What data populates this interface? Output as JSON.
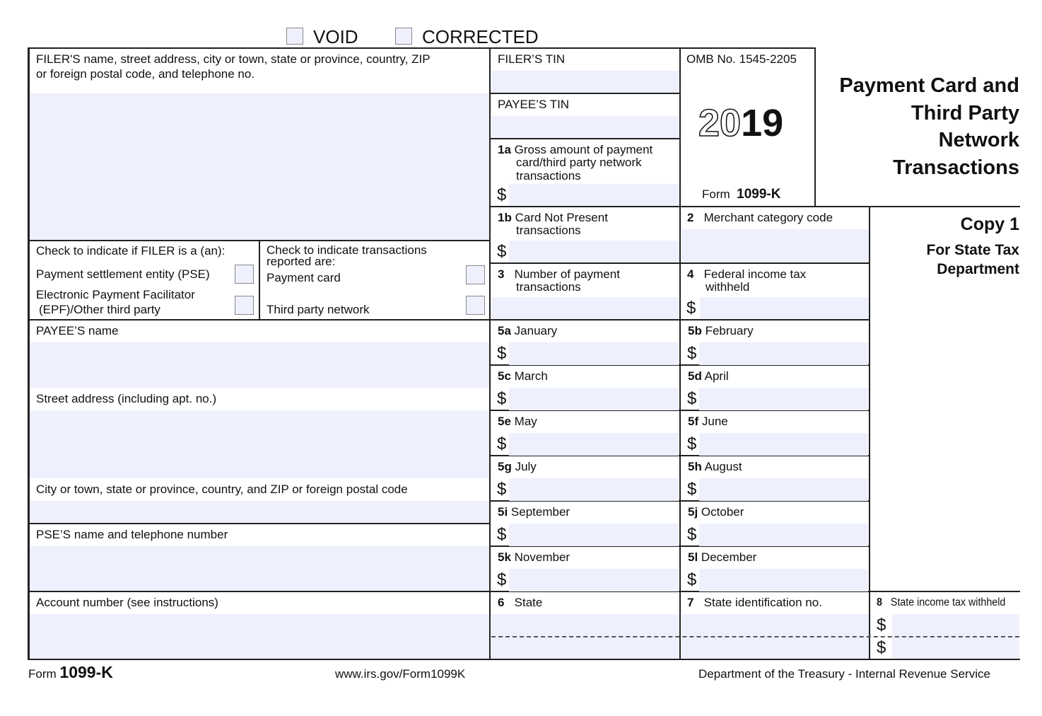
{
  "header": {
    "void": "VOID",
    "corrected": "CORRECTED"
  },
  "filer": {
    "label_line1": "FILER'S name, street address, city or town, state or province, country, ZIP",
    "label_line2": "or foreign postal code, and telephone no."
  },
  "filer_tin": "FILER’S TIN",
  "payee_tin": "PAYEE’S TIN",
  "omb": "OMB No. 1545-2205",
  "year": {
    "outline": "20",
    "bold": "19"
  },
  "form_id": {
    "prefix": "Form",
    "name": "1099-K"
  },
  "title": {
    "line1": "Payment Card and",
    "line2": "Third Party",
    "line3": "Network",
    "line4": "Transactions"
  },
  "copy": {
    "title": "Copy 1",
    "line1": "For State Tax",
    "line2": "Department"
  },
  "box1a": {
    "num": "1a",
    "line1": "Gross amount of payment",
    "line2": "card/third party network",
    "line3": "transactions"
  },
  "box1b": {
    "num": "1b",
    "line1": "Card Not Present",
    "line2": "transactions"
  },
  "box2": {
    "num": "2",
    "label": "Merchant category code"
  },
  "box3": {
    "num": "3",
    "line1": "Number of payment",
    "line2": "transactions"
  },
  "box4": {
    "num": "4",
    "line1": "Federal income tax",
    "line2": "withheld"
  },
  "filer_check": {
    "title": "Check to indicate if FILER is a (an):",
    "pse": "Payment settlement entity (PSE)",
    "epf_line1": "Electronic Payment Facilitator",
    "epf_line2": "(EPF)/Other third party"
  },
  "trans_check": {
    "title_line1": "Check to indicate transactions",
    "title_line2": "reported are:",
    "card": "Payment card",
    "network": "Third party network"
  },
  "payee_name": "PAYEE’S name",
  "street": "Street address (including apt. no.)",
  "city": "City or town, state or province, country, and ZIP or foreign postal code",
  "pse_name": "PSE’S name and telephone number",
  "account": "Account number (see instructions)",
  "months": [
    {
      "num": "5a",
      "label": "January"
    },
    {
      "num": "5b",
      "label": "February"
    },
    {
      "num": "5c",
      "label": "March"
    },
    {
      "num": "5d",
      "label": "April"
    },
    {
      "num": "5e",
      "label": "May"
    },
    {
      "num": "5f",
      "label": "June"
    },
    {
      "num": "5g",
      "label": "July"
    },
    {
      "num": "5h",
      "label": "August"
    },
    {
      "num": "5i",
      "label": "September"
    },
    {
      "num": "5j",
      "label": "October"
    },
    {
      "num": "5k",
      "label": "November"
    },
    {
      "num": "5l",
      "label": "December"
    }
  ],
  "box6": {
    "num": "6",
    "label": "State"
  },
  "box7": {
    "num": "7",
    "label": "State identification no."
  },
  "box8": {
    "num": "8",
    "label": "State income tax withheld"
  },
  "currency": "$",
  "footer": {
    "form_prefix": "Form",
    "form_name": "1099-K",
    "url": "www.irs.gov/Form1099K",
    "dept": "Department of the Treasury - Internal Revenue Service"
  },
  "colors": {
    "field_fill": "#eef0fd",
    "lines": "#222222"
  }
}
